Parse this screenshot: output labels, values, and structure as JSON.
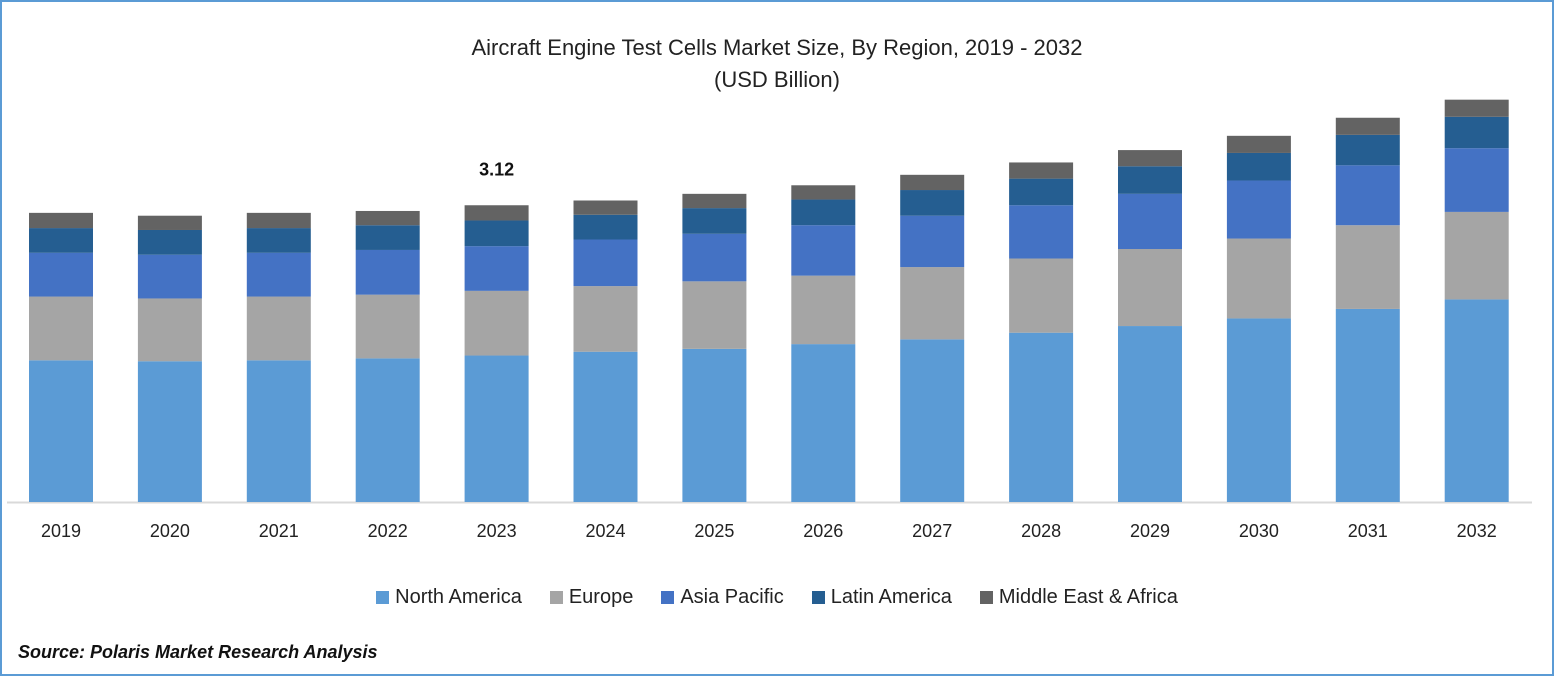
{
  "chart_data": {
    "type": "bar",
    "stacked": true,
    "title": "Aircraft Engine Test Cells Market Size, By Region, 2019 - 2032",
    "subtitle": "(USD Billion)",
    "xlabel": "",
    "ylabel": "",
    "ylim": [
      0,
      4.5
    ],
    "grid": false,
    "legend_position": "bottom",
    "categories": [
      "2019",
      "2020",
      "2021",
      "2022",
      "2023",
      "2024",
      "2025",
      "2026",
      "2027",
      "2028",
      "2029",
      "2030",
      "2031",
      "2032"
    ],
    "series": [
      {
        "name": "North America",
        "color": "#5B9BD5",
        "values": [
          1.49,
          1.48,
          1.49,
          1.51,
          1.54,
          1.58,
          1.61,
          1.66,
          1.71,
          1.78,
          1.85,
          1.93,
          2.03,
          2.13
        ]
      },
      {
        "name": "Europe",
        "color": "#A5A5A5",
        "values": [
          0.67,
          0.66,
          0.67,
          0.67,
          0.68,
          0.69,
          0.71,
          0.72,
          0.76,
          0.78,
          0.81,
          0.84,
          0.88,
          0.92
        ]
      },
      {
        "name": "Asia Pacific",
        "color": "#4472C4",
        "values": [
          0.46,
          0.46,
          0.46,
          0.47,
          0.47,
          0.49,
          0.5,
          0.53,
          0.54,
          0.56,
          0.58,
          0.61,
          0.63,
          0.67
        ]
      },
      {
        "name": "Latin America",
        "color": "#255E91",
        "values": [
          0.26,
          0.26,
          0.26,
          0.26,
          0.27,
          0.26,
          0.27,
          0.27,
          0.27,
          0.28,
          0.29,
          0.29,
          0.32,
          0.33
        ]
      },
      {
        "name": "Middle East & Africa",
        "color": "#636363",
        "values": [
          0.16,
          0.15,
          0.16,
          0.15,
          0.16,
          0.15,
          0.15,
          0.15,
          0.16,
          0.17,
          0.17,
          0.18,
          0.18,
          0.18
        ]
      }
    ],
    "annotations": [
      {
        "category": "2023",
        "text": "3.12"
      }
    ]
  },
  "source": "Source: Polaris Market Research Analysis"
}
